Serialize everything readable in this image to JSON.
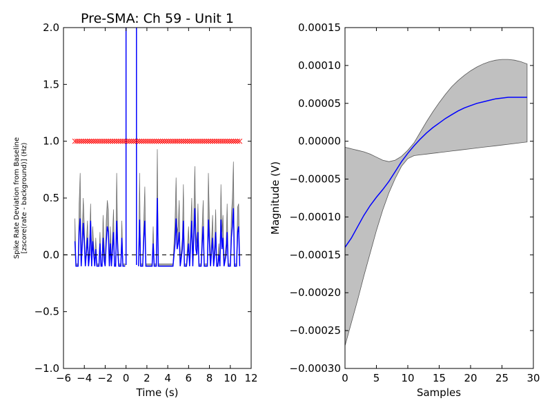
{
  "chart_data": [
    {
      "type": "line",
      "title": "Pre-SMA: Ch 59 - Unit 1",
      "xlabel": "Time (s)",
      "ylabel_line1": "Spike Rate Deviation from Baseline",
      "ylabel_line2": "[zscore(rate - background)] (Hz)",
      "xlim": [
        -6,
        12
      ],
      "ylim": [
        -1.0,
        2.0
      ],
      "xticks": [
        -6,
        -4,
        -2,
        0,
        2,
        4,
        6,
        8,
        10,
        12
      ],
      "xtick_labels": [
        "−6",
        "−4",
        "−2",
        "0",
        "2",
        "4",
        "6",
        "8",
        "10",
        "12"
      ],
      "yticks": [
        -1.0,
        -0.5,
        0.0,
        0.5,
        1.0,
        1.5,
        2.0
      ],
      "ytick_labels": [
        "−1.0",
        "−0.5",
        "0.0",
        "0.5",
        "1.0",
        "1.5",
        "2.0"
      ],
      "vlines": [
        0,
        1
      ],
      "hline_dashed": 0,
      "marker_row_y": 1.0,
      "marker_color": "#ff0000",
      "line_color": "#0000ff",
      "band_color": "#808080",
      "mean_segments": [
        [
          [
            -4.9,
            0.12
          ],
          [
            -4.8,
            -0.1
          ],
          [
            -4.6,
            -0.1
          ],
          [
            -4.5,
            0.2
          ],
          [
            -4.4,
            0.32
          ],
          [
            -4.3,
            -0.1
          ],
          [
            -4.1,
            0.28
          ],
          [
            -4.0,
            0.1
          ],
          [
            -3.9,
            -0.1
          ],
          [
            -3.7,
            0.15
          ],
          [
            -3.6,
            -0.1
          ],
          [
            -3.5,
            0.0
          ],
          [
            -3.4,
            0.3
          ],
          [
            -3.3,
            -0.1
          ],
          [
            -3.2,
            0.12
          ],
          [
            -3.0,
            -0.1
          ],
          [
            -2.9,
            0.05
          ],
          [
            -2.8,
            -0.1
          ],
          [
            -2.6,
            -0.1
          ],
          [
            -2.5,
            0.1
          ],
          [
            -2.4,
            -0.1
          ],
          [
            -2.3,
            -0.1
          ],
          [
            -2.2,
            0.15
          ],
          [
            -2.1,
            -0.05
          ],
          [
            -2.0,
            -0.1
          ],
          [
            -1.9,
            0.12
          ],
          [
            -1.8,
            0.25
          ],
          [
            -1.7,
            0.2
          ],
          [
            -1.6,
            -0.1
          ],
          [
            -1.5,
            0.1
          ],
          [
            -1.4,
            -0.1
          ],
          [
            -1.2,
            0.2
          ],
          [
            -1.1,
            -0.1
          ],
          [
            -1.0,
            -0.1
          ],
          [
            -0.9,
            0.3
          ],
          [
            -0.8,
            0.05
          ],
          [
            -0.7,
            -0.1
          ],
          [
            -0.5,
            -0.1
          ],
          [
            -0.4,
            0.15
          ],
          [
            -0.3,
            -0.1
          ],
          [
            -0.1,
            -0.1
          ]
        ],
        [
          [
            1.2,
            -0.1
          ],
          [
            1.3,
            0.31
          ],
          [
            1.4,
            -0.1
          ],
          [
            1.6,
            -0.1
          ],
          [
            1.7,
            0.15
          ],
          [
            1.8,
            0.3
          ],
          [
            1.9,
            -0.1
          ],
          [
            2.2,
            -0.1
          ],
          [
            2.5,
            -0.1
          ],
          [
            2.6,
            0.1
          ],
          [
            2.7,
            -0.1
          ],
          [
            2.9,
            -0.1
          ],
          [
            3.0,
            0.5
          ],
          [
            3.1,
            -0.1
          ],
          [
            4.5,
            -0.1
          ],
          [
            4.7,
            0.1
          ],
          [
            4.8,
            0.32
          ],
          [
            4.9,
            0.05
          ],
          [
            5.0,
            0.1
          ],
          [
            5.1,
            0.2
          ],
          [
            5.2,
            -0.1
          ],
          [
            5.4,
            0.05
          ],
          [
            5.5,
            0.3
          ],
          [
            5.6,
            -0.1
          ],
          [
            5.8,
            -0.1
          ],
          [
            5.9,
            0.0
          ],
          [
            6.0,
            0.1
          ],
          [
            6.1,
            -0.1
          ],
          [
            6.3,
            0.3
          ],
          [
            6.4,
            -0.1
          ],
          [
            6.6,
            0.41
          ],
          [
            6.7,
            0.05
          ],
          [
            6.8,
            0.0
          ],
          [
            6.9,
            0.2
          ],
          [
            7.0,
            -0.1
          ],
          [
            7.2,
            -0.1
          ],
          [
            7.3,
            0.1
          ],
          [
            7.4,
            0.25
          ],
          [
            7.5,
            -0.1
          ],
          [
            7.8,
            -0.1
          ],
          [
            7.9,
            0.31
          ],
          [
            8.0,
            0.1
          ],
          [
            8.1,
            -0.1
          ],
          [
            8.3,
            0.15
          ],
          [
            8.4,
            -0.1
          ],
          [
            8.5,
            0.0
          ],
          [
            8.6,
            0.2
          ],
          [
            8.7,
            -0.1
          ],
          [
            8.8,
            -0.1
          ],
          [
            8.9,
            0.0
          ],
          [
            9.0,
            -0.1
          ],
          [
            9.1,
            0.31
          ],
          [
            9.2,
            0.05
          ],
          [
            9.3,
            0.15
          ],
          [
            9.4,
            -0.1
          ],
          [
            9.6,
            0.0
          ],
          [
            9.7,
            0.2
          ],
          [
            9.8,
            -0.1
          ],
          [
            10.0,
            -0.1
          ],
          [
            10.1,
            0.15
          ],
          [
            10.2,
            0.25
          ],
          [
            10.3,
            0.41
          ],
          [
            10.4,
            -0.1
          ],
          [
            10.6,
            -0.1
          ],
          [
            10.7,
            0.2
          ],
          [
            10.8,
            0.25
          ],
          [
            10.9,
            -0.1
          ]
        ]
      ],
      "upper_segments": [
        [
          [
            -4.9,
            0.32
          ],
          [
            -4.8,
            -0.08
          ],
          [
            -4.6,
            -0.08
          ],
          [
            -4.5,
            0.45
          ],
          [
            -4.4,
            0.72
          ],
          [
            -4.3,
            -0.08
          ],
          [
            -4.1,
            0.5
          ],
          [
            -4.0,
            0.25
          ],
          [
            -3.9,
            -0.08
          ],
          [
            -3.7,
            0.3
          ],
          [
            -3.6,
            -0.08
          ],
          [
            -3.5,
            0.1
          ],
          [
            -3.4,
            0.45
          ],
          [
            -3.3,
            -0.08
          ],
          [
            -3.2,
            0.25
          ],
          [
            -3.0,
            -0.08
          ],
          [
            -2.9,
            0.15
          ],
          [
            -2.8,
            -0.08
          ],
          [
            -2.6,
            -0.08
          ],
          [
            -2.5,
            0.2
          ],
          [
            -2.4,
            -0.08
          ],
          [
            -2.3,
            -0.08
          ],
          [
            -2.2,
            0.35
          ],
          [
            -2.1,
            0.1
          ],
          [
            -2.0,
            -0.08
          ],
          [
            -1.9,
            0.3
          ],
          [
            -1.8,
            0.48
          ],
          [
            -1.7,
            0.4
          ],
          [
            -1.6,
            -0.08
          ],
          [
            -1.5,
            0.25
          ],
          [
            -1.4,
            -0.08
          ],
          [
            -1.2,
            0.4
          ],
          [
            -1.1,
            -0.08
          ],
          [
            -1.0,
            -0.08
          ],
          [
            -0.9,
            0.72
          ],
          [
            -0.8,
            0.15
          ],
          [
            -0.7,
            -0.08
          ],
          [
            -0.5,
            -0.08
          ],
          [
            -0.4,
            0.3
          ],
          [
            -0.3,
            -0.08
          ],
          [
            -0.1,
            -0.08
          ]
        ],
        [
          [
            1.2,
            -0.08
          ],
          [
            1.3,
            0.72
          ],
          [
            1.4,
            -0.08
          ],
          [
            1.6,
            -0.08
          ],
          [
            1.7,
            0.3
          ],
          [
            1.8,
            0.6
          ],
          [
            1.9,
            -0.08
          ],
          [
            2.2,
            -0.08
          ],
          [
            2.5,
            -0.08
          ],
          [
            2.6,
            0.25
          ],
          [
            2.7,
            -0.08
          ],
          [
            2.9,
            -0.08
          ],
          [
            3.0,
            0.93
          ],
          [
            3.1,
            -0.08
          ],
          [
            4.5,
            -0.08
          ],
          [
            4.7,
            0.3
          ],
          [
            4.8,
            0.68
          ],
          [
            4.9,
            0.2
          ],
          [
            5.0,
            0.25
          ],
          [
            5.1,
            0.48
          ],
          [
            5.2,
            -0.08
          ],
          [
            5.4,
            0.15
          ],
          [
            5.5,
            0.62
          ],
          [
            5.6,
            -0.08
          ],
          [
            5.8,
            -0.08
          ],
          [
            5.9,
            0.1
          ],
          [
            6.0,
            0.25
          ],
          [
            6.1,
            -0.08
          ],
          [
            6.3,
            0.5
          ],
          [
            6.4,
            -0.08
          ],
          [
            6.6,
            0.78
          ],
          [
            6.7,
            0.2
          ],
          [
            6.8,
            0.1
          ],
          [
            6.9,
            0.45
          ],
          [
            7.0,
            -0.08
          ],
          [
            7.2,
            -0.08
          ],
          [
            7.3,
            0.25
          ],
          [
            7.4,
            0.48
          ],
          [
            7.5,
            -0.08
          ],
          [
            7.8,
            -0.08
          ],
          [
            7.9,
            0.72
          ],
          [
            8.0,
            0.3
          ],
          [
            8.1,
            -0.08
          ],
          [
            8.3,
            0.35
          ],
          [
            8.4,
            -0.08
          ],
          [
            8.5,
            0.1
          ],
          [
            8.6,
            0.4
          ],
          [
            8.7,
            -0.08
          ],
          [
            8.8,
            -0.08
          ],
          [
            8.9,
            0.1
          ],
          [
            9.0,
            -0.08
          ],
          [
            9.1,
            0.62
          ],
          [
            9.2,
            0.2
          ],
          [
            9.3,
            0.35
          ],
          [
            9.4,
            -0.08
          ],
          [
            9.6,
            0.1
          ],
          [
            9.7,
            0.45
          ],
          [
            9.8,
            -0.08
          ],
          [
            10.0,
            -0.08
          ],
          [
            10.1,
            0.35
          ],
          [
            10.2,
            0.5
          ],
          [
            10.3,
            0.82
          ],
          [
            10.4,
            -0.08
          ],
          [
            10.6,
            -0.08
          ],
          [
            10.7,
            0.42
          ],
          [
            10.8,
            0.45
          ],
          [
            10.9,
            -0.08
          ]
        ]
      ],
      "marker_x": [
        -4.9,
        -4.7,
        -4.5,
        -4.3,
        -4.1,
        -3.9,
        -3.7,
        -3.5,
        -3.3,
        -3.1,
        -2.9,
        -2.7,
        -2.5,
        -2.3,
        -2.1,
        -1.9,
        -1.7,
        -1.5,
        -1.3,
        -1.1,
        -0.9,
        -0.7,
        -0.5,
        -0.3,
        -0.1,
        0.1,
        0.3,
        0.5,
        0.7,
        0.9,
        1.1,
        1.3,
        1.5,
        1.7,
        1.9,
        2.1,
        2.3,
        2.5,
        2.7,
        2.9,
        3.1,
        3.3,
        3.5,
        3.7,
        3.9,
        4.1,
        4.3,
        4.5,
        4.7,
        4.9,
        5.1,
        5.3,
        5.5,
        5.7,
        5.9,
        6.1,
        6.3,
        6.5,
        6.7,
        6.9,
        7.1,
        7.3,
        7.5,
        7.7,
        7.9,
        8.1,
        8.3,
        8.5,
        8.7,
        8.9,
        9.1,
        9.3,
        9.5,
        9.7,
        9.9,
        10.1,
        10.3,
        10.5,
        10.7,
        10.9
      ]
    },
    {
      "type": "area",
      "title": "",
      "xlabel": "Samples",
      "ylabel": "Magnitude (V)",
      "xlim": [
        0,
        30
      ],
      "ylim": [
        -0.0003,
        0.00015
      ],
      "xticks": [
        0,
        5,
        10,
        15,
        20,
        25,
        30
      ],
      "xtick_labels": [
        "0",
        "5",
        "10",
        "15",
        "20",
        "25",
        "30"
      ],
      "yticks": [
        -0.0003,
        -0.00025,
        -0.0002,
        -0.00015,
        -0.0001,
        -5e-05,
        0.0,
        5e-05,
        0.0001,
        0.00015
      ],
      "ytick_labels": [
        "−0.00030",
        "−0.00025",
        "−0.00020",
        "−0.00015",
        "−0.00010",
        "−0.00005",
        "0.00000",
        "0.00005",
        "0.00010",
        "0.00015"
      ],
      "line_color": "#0000ff",
      "band_color": "#c0c0c0",
      "x": [
        0,
        1,
        2,
        3,
        4,
        5,
        6,
        7,
        8,
        9,
        10,
        11,
        12,
        13,
        14,
        15,
        16,
        17,
        18,
        19,
        20,
        21,
        22,
        23,
        24,
        25,
        26,
        27,
        28,
        29
      ],
      "mean": [
        -0.00014,
        -0.000128,
        -0.000113,
        -9.8e-05,
        -8.5e-05,
        -7.4e-05,
        -6.4e-05,
        -5.3e-05,
        -4e-05,
        -2.7e-05,
        -1.6e-05,
        -6e-06,
        3e-06,
        1.1e-05,
        1.8e-05,
        2.4e-05,
        3e-05,
        3.5e-05,
        4e-05,
        4.4e-05,
        4.7e-05,
        5e-05,
        5.2e-05,
        5.4e-05,
        5.6e-05,
        5.7e-05,
        5.8e-05,
        5.8e-05,
        5.8e-05,
        5.8e-05
      ],
      "upper": [
        -8e-06,
        -1e-05,
        -1.2e-05,
        -1.4e-05,
        -1.7e-05,
        -2.1e-05,
        -2.5e-05,
        -2.7e-05,
        -2.5e-05,
        -2e-05,
        -1.2e-05,
        -2e-06,
        1.2e-05,
        2.6e-05,
        3.9e-05,
        5.1e-05,
        6.2e-05,
        7.2e-05,
        8e-05,
        8.7e-05,
        9.3e-05,
        9.8e-05,
        0.000102,
        0.000105,
        0.000107,
        0.000108,
        0.000108,
        0.000107,
        0.000105,
        0.000102
      ],
      "lower": [
        -0.00027,
        -0.00024,
        -0.00021,
        -0.000178,
        -0.000148,
        -0.000118,
        -9.1e-05,
        -6.8e-05,
        -4.9e-05,
        -3.3e-05,
        -2.3e-05,
        -1.9e-05,
        -1.8e-05,
        -1.7e-05,
        -1.6e-05,
        -1.5e-05,
        -1.4e-05,
        -1.3e-05,
        -1.2e-05,
        -1.1e-05,
        -1e-05,
        -9e-06,
        -8e-06,
        -7e-06,
        -6e-06,
        -5e-06,
        -4e-06,
        -3e-06,
        -2e-06,
        -1e-06
      ]
    }
  ]
}
